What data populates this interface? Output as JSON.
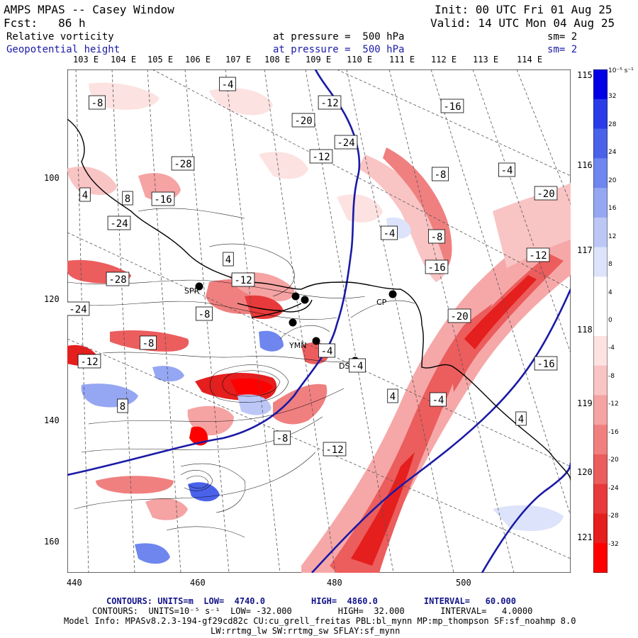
{
  "header": {
    "title": "AMPS MPAS -- Casey Window",
    "init": "Init: 00 UTC Fri 01 Aug 25",
    "fcst": "Fcst:   86 h",
    "valid": "Valid: 14 UTC Mon 04 Aug 25",
    "field1": "Relative vorticity",
    "field1_level": "at pressure =  500 hPa",
    "field1_sm": "sm= 2",
    "field2": "Geopotential height",
    "field2_level": "at pressure =  500 hPa",
    "field2_sm": "sm= 2"
  },
  "top_lon_labels": [
    "103 E",
    "104 E",
    "105 E",
    "106 E",
    "107 E",
    "108 E",
    "109 E",
    "110 E",
    "111 E",
    "112 E",
    "113 E",
    "114 E",
    "115 E"
  ],
  "right_lon_labels": [
    "116 E",
    "117 E",
    "118 E",
    "119 E",
    "120 E",
    "121 E"
  ],
  "x_grid_labels": [
    "440",
    "460",
    "480",
    "500"
  ],
  "y_grid_labels": [
    "100",
    "120",
    "140",
    "160"
  ],
  "colorbar": {
    "unit": "10⁻⁵ s⁻¹",
    "labels": [
      "32",
      "28",
      "24",
      "20",
      "16",
      "12",
      "8",
      "4",
      "0",
      "-4",
      "-8",
      "-12",
      "-16",
      "-20",
      "-24",
      "-28",
      "-32"
    ],
    "colors": [
      "#0000e6",
      "#2a3ce8",
      "#4a62ea",
      "#6e86ee",
      "#95a6f2",
      "#bcc7f6",
      "#dde3fa",
      "#ffffff",
      "#ffffff",
      "#fde2e2",
      "#f9c4c4",
      "#f5a3a3",
      "#f08080",
      "#ec5d5d",
      "#e83a3a",
      "#e51e1e",
      "#ff0000"
    ]
  },
  "map_labels": [
    "-4",
    "-8",
    "-12",
    "-16",
    "-20",
    "-24",
    "-28",
    "-12",
    "-8",
    "-4",
    "4",
    "8",
    "-16",
    "-24",
    "-20",
    "-4",
    "-8",
    "-12",
    "4",
    "-28",
    "-12",
    "-16",
    "-8",
    "-4",
    "-20",
    "-12",
    "-24",
    "-8",
    "-4",
    "4",
    "8",
    "-16",
    "-4",
    "-12",
    "-8",
    "4"
  ],
  "stations": [
    "SPR",
    "CP",
    "DS",
    "YMN"
  ],
  "footer": {
    "contours1": "CONTOURS: UNITS=m  LOW=  4740.0         HIGH=  4860.0         INTERVAL=   60.000",
    "contours2": "CONTOURS:  UNITS=10⁻⁵ s⁻¹  LOW= -32.000         HIGH=  32.000       INTERVAL=   4.0000",
    "model1": "Model Info: MPASv8.2.3-194-gf29cd82c CU:cu_grell_freitas PBL:bl_mynn MP:mp_thompson SF:sf_noahmp 8.0",
    "model2": "LW:rrtmg_lw SW:rrtmg_sw SFLAY:sf_mynn"
  }
}
